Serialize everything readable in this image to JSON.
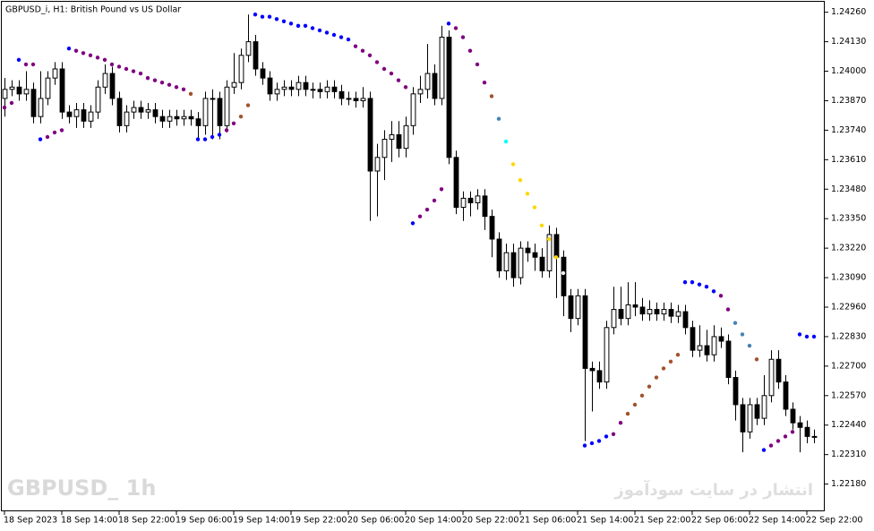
{
  "chart_data": {
    "type": "candlestick",
    "title": "GBPUSD_i, H1:  British Pound vs US Dollar",
    "watermark": "GBPUSD_ 1h",
    "caption": "انتشار در سایت سودآموز",
    "up_color": "#ffffff",
    "down_color": "#000000",
    "xlim": [
      -0.5,
      114.5
    ],
    "ylim": [
      1.2206,
      1.2431
    ],
    "xticks": [
      {
        "value": 0,
        "label": "18 Sep 2023"
      },
      {
        "value": 8,
        "label": "18 Sep 14:00"
      },
      {
        "value": 16,
        "label": "18 Sep 22:00"
      },
      {
        "value": 24,
        "label": "19 Sep 06:00"
      },
      {
        "value": 32,
        "label": "19 Sep 14:00"
      },
      {
        "value": 40,
        "label": "19 Sep 22:00"
      },
      {
        "value": 48,
        "label": "20 Sep 06:00"
      },
      {
        "value": 56,
        "label": "20 Sep 14:00"
      },
      {
        "value": 64,
        "label": "20 Sep 22:00"
      },
      {
        "value": 72,
        "label": "21 Sep 06:00"
      },
      {
        "value": 80,
        "label": "21 Sep 14:00"
      },
      {
        "value": 88,
        "label": "21 Sep 22:00"
      },
      {
        "value": 96,
        "label": "22 Sep 06:00"
      },
      {
        "value": 104,
        "label": "22 Sep 14:00"
      },
      {
        "value": 112,
        "label": "22 Sep 22:00"
      }
    ],
    "yticks": [
      {
        "value": 1.2426,
        "label": "1.24260"
      },
      {
        "value": 1.2413,
        "label": "1.24130"
      },
      {
        "value": 1.24,
        "label": "1.24000"
      },
      {
        "value": 1.2387,
        "label": "1.23870"
      },
      {
        "value": 1.2374,
        "label": "1.23740"
      },
      {
        "value": 1.2361,
        "label": "1.23610"
      },
      {
        "value": 1.2348,
        "label": "1.23480"
      },
      {
        "value": 1.2335,
        "label": "1.23350"
      },
      {
        "value": 1.2322,
        "label": "1.23220"
      },
      {
        "value": 1.2309,
        "label": "1.23090"
      },
      {
        "value": 1.2296,
        "label": "1.22960"
      },
      {
        "value": 1.2283,
        "label": "1.22830"
      },
      {
        "value": 1.227,
        "label": "1.22700"
      },
      {
        "value": 1.2257,
        "label": "1.22570"
      },
      {
        "value": 1.2244,
        "label": "1.22440"
      },
      {
        "value": 1.2231,
        "label": "1.22310"
      },
      {
        "value": 1.2218,
        "label": "1.22180"
      }
    ],
    "open": [
      1.2388,
      1.2392,
      1.2393,
      1.239,
      1.2392,
      1.238,
      1.2388,
      1.2397,
      1.2401,
      1.2382,
      1.238,
      1.2383,
      1.2378,
      1.2382,
      1.2393,
      1.2399,
      1.2388,
      1.2376,
      1.2382,
      1.2384,
      1.2382,
      1.2383,
      1.238,
      1.2378,
      1.238,
      1.2379,
      1.238,
      1.2379,
      1.2376,
      1.2388,
      1.2388,
      1.2376,
      1.2393,
      1.2395,
      1.2407,
      1.2413,
      1.2401,
      1.2397,
      1.239,
      1.2392,
      1.2393,
      1.2392,
      1.2395,
      1.2392,
      1.2392,
      1.2391,
      1.2393,
      1.2391,
      1.2388,
      1.2388,
      1.2387,
      1.2388,
      1.2356,
      1.2362,
      1.237,
      1.2372,
      1.2366,
      1.2376,
      1.239,
      1.2392,
      1.2399,
      1.2388,
      1.2415,
      1.2362,
      1.234,
      1.2344,
      1.2342,
      1.2345,
      1.2336,
      1.2326,
      1.2312,
      1.232,
      1.2309,
      1.2322,
      1.232,
      1.2318,
      1.2312,
      1.2328,
      1.2318,
      1.2301,
      1.2291,
      1.2301,
      1.2269,
      1.2268,
      1.2263,
      1.2287,
      1.2295,
      1.2291,
      1.2297,
      1.2296,
      1.2293,
      1.2295,
      1.2293,
      1.2295,
      1.2292,
      1.2294,
      1.2287,
      1.2277,
      1.2279,
      1.2275,
      1.2283,
      1.2281,
      1.2265,
      1.2253,
      1.2241,
      1.2253,
      1.2247,
      1.2257,
      1.2273,
      1.2263,
      1.2251,
      1.2245,
      1.2243,
      1.2239
    ],
    "high": [
      1.2397,
      1.2396,
      1.2396,
      1.24,
      1.2395,
      1.24,
      1.24,
      1.2404,
      1.2404,
      1.2385,
      1.2386,
      1.2386,
      1.2385,
      1.2396,
      1.2403,
      1.2402,
      1.2391,
      1.2385,
      1.2387,
      1.2387,
      1.2386,
      1.2386,
      1.2383,
      1.2383,
      1.2383,
      1.2383,
      1.2383,
      1.2382,
      1.2391,
      1.2392,
      1.2391,
      1.2396,
      1.2408,
      1.241,
      1.2425,
      1.2416,
      1.2404,
      1.24,
      1.2395,
      1.2396,
      1.2396,
      1.2398,
      1.2398,
      1.2395,
      1.2395,
      1.2396,
      1.2396,
      1.2394,
      1.2391,
      1.2391,
      1.2393,
      1.2391,
      1.2368,
      1.2374,
      1.2378,
      1.2378,
      1.238,
      1.2393,
      1.2398,
      1.2412,
      1.2403,
      1.242,
      1.2418,
      1.2365,
      1.2347,
      1.2347,
      1.2348,
      1.2348,
      1.2339,
      1.2329,
      1.2324,
      1.2324,
      1.2325,
      1.2325,
      1.2324,
      1.2322,
      1.2332,
      1.2331,
      1.2321,
      1.2304,
      1.2304,
      1.2304,
      1.2272,
      1.2272,
      1.229,
      1.2305,
      1.2305,
      1.2307,
      1.2307,
      1.23,
      1.2299,
      1.2298,
      1.2298,
      1.2298,
      1.2297,
      1.2297,
      1.229,
      1.2288,
      1.2286,
      1.2288,
      1.2287,
      1.2284,
      1.2268,
      1.2256,
      1.2256,
      1.2256,
      1.2266,
      1.2277,
      1.2277,
      1.2266,
      1.2254,
      1.2248,
      1.2246,
      1.2242
    ],
    "low": [
      1.238,
      1.2389,
      1.2387,
      1.2387,
      1.2377,
      1.2377,
      1.2385,
      1.2394,
      1.2379,
      1.2377,
      1.2375,
      1.2375,
      1.2375,
      1.2379,
      1.239,
      1.2385,
      1.2373,
      1.2373,
      1.2379,
      1.2379,
      1.2379,
      1.2377,
      1.2375,
      1.2375,
      1.2376,
      1.2376,
      1.2376,
      1.237,
      1.2372,
      1.237,
      1.237,
      1.2373,
      1.239,
      1.2392,
      1.2404,
      1.2398,
      1.2394,
      1.2387,
      1.2387,
      1.2389,
      1.2389,
      1.2389,
      1.2389,
      1.2388,
      1.2388,
      1.2388,
      1.2388,
      1.2385,
      1.2385,
      1.2384,
      1.2384,
      1.2334,
      1.2336,
      1.2352,
      1.236,
      1.2362,
      1.2362,
      1.2372,
      1.2386,
      1.2388,
      1.2385,
      1.2385,
      1.2359,
      1.2337,
      1.2334,
      1.2336,
      1.2339,
      1.233,
      1.2318,
      1.2309,
      1.2308,
      1.2305,
      1.2306,
      1.2316,
      1.2312,
      1.2309,
      1.2309,
      1.23,
      1.2292,
      1.2285,
      1.2288,
      1.2237,
      1.225,
      1.226,
      1.226,
      1.2284,
      1.2288,
      1.2288,
      1.2292,
      1.229,
      1.229,
      1.229,
      1.229,
      1.2289,
      1.2289,
      1.2284,
      1.2274,
      1.2274,
      1.2272,
      1.2272,
      1.2278,
      1.2262,
      1.2246,
      1.2232,
      1.2238,
      1.2244,
      1.2244,
      1.2254,
      1.226,
      1.2248,
      1.2242,
      1.2232,
      1.2236,
      1.2236
    ],
    "close": [
      1.2392,
      1.2393,
      1.239,
      1.2392,
      1.238,
      1.2388,
      1.2397,
      1.2401,
      1.2382,
      1.238,
      1.2383,
      1.2378,
      1.2382,
      1.2393,
      1.2399,
      1.2388,
      1.2376,
      1.2382,
      1.2384,
      1.2382,
      1.2383,
      1.238,
      1.2378,
      1.238,
      1.2379,
      1.238,
      1.2379,
      1.2376,
      1.2388,
      1.2388,
      1.2376,
      1.2393,
      1.2395,
      1.2407,
      1.2413,
      1.2401,
      1.2397,
      1.239,
      1.2392,
      1.2393,
      1.2392,
      1.2395,
      1.2392,
      1.2392,
      1.2391,
      1.2393,
      1.2391,
      1.2388,
      1.2388,
      1.2387,
      1.2388,
      1.2356,
      1.2362,
      1.237,
      1.2372,
      1.2366,
      1.2376,
      1.239,
      1.2392,
      1.2399,
      1.2388,
      1.2415,
      1.2362,
      1.234,
      1.2344,
      1.2342,
      1.2345,
      1.2336,
      1.2326,
      1.2312,
      1.232,
      1.2309,
      1.2322,
      1.232,
      1.2318,
      1.2312,
      1.2328,
      1.2318,
      1.2301,
      1.2291,
      1.2301,
      1.2269,
      1.2268,
      1.2263,
      1.2287,
      1.2295,
      1.2291,
      1.2297,
      1.2296,
      1.2293,
      1.2295,
      1.2293,
      1.2295,
      1.2292,
      1.2294,
      1.2287,
      1.2277,
      1.2279,
      1.2275,
      1.2283,
      1.2281,
      1.2265,
      1.2253,
      1.2241,
      1.2253,
      1.2247,
      1.2257,
      1.2273,
      1.2263,
      1.2251,
      1.2245,
      1.2243,
      1.2239,
      1.2239
    ],
    "sar": {
      "values": [
        1.2384,
        1.2386,
        1.2405,
        1.2403,
        1.2403,
        1.237,
        1.2371,
        1.2373,
        1.2374,
        1.241,
        1.2409,
        1.2408,
        1.2407,
        1.2406,
        1.2405,
        1.2403,
        1.2402,
        1.2401,
        1.24,
        1.2399,
        1.2397,
        1.2396,
        1.2395,
        1.2394,
        1.2393,
        1.2392,
        1.239,
        1.237,
        1.237,
        1.2371,
        1.2372,
        1.2374,
        1.2377,
        1.238,
        1.2385,
        1.2425,
        1.2424,
        1.2424,
        1.2423,
        1.2422,
        1.2421,
        1.242,
        1.242,
        1.2419,
        1.2418,
        1.2417,
        1.2416,
        1.2415,
        1.2414,
        1.2411,
        1.2409,
        1.2407,
        1.2404,
        1.2401,
        1.2399,
        1.2396,
        1.2393,
        1.2333,
        1.2336,
        1.2339,
        1.2343,
        1.2348,
        1.2421,
        1.2419,
        1.2415,
        1.2409,
        1.2403,
        1.2395,
        1.2389,
        1.2379,
        1.2369,
        1.2359,
        1.2352,
        1.2346,
        1.234,
        1.2332,
        1.2326,
        1.2318,
        1.2311,
        null,
        null,
        1.2235,
        1.2236,
        1.2237,
        1.2239,
        1.224,
        1.2245,
        1.2249,
        1.2253,
        1.2257,
        1.2261,
        1.2265,
        1.2269,
        1.2272,
        1.2275,
        1.2307,
        1.2307,
        1.2306,
        1.2305,
        1.2303,
        1.2301,
        1.2295,
        1.2289,
        1.2284,
        1.2279,
        1.2273,
        1.2233,
        1.2235,
        1.2237,
        1.2239,
        1.2241,
        1.2284,
        1.2283,
        1.2283
      ],
      "colors": [
        "#800080",
        "#800080",
        "#0000ff",
        "#800080",
        "#800080",
        "#0000ff",
        "#800080",
        "#800080",
        "#800080",
        "#0000ff",
        "#800080",
        "#800080",
        "#800080",
        "#800080",
        "#800080",
        "#800080",
        "#800080",
        "#800080",
        "#800080",
        "#800080",
        "#800080",
        "#800080",
        "#800080",
        "#800080",
        "#800080",
        "#800080",
        "#a0522d",
        "#0000ff",
        "#0000ff",
        "#0000ff",
        "#0000ff",
        "#800080",
        "#800080",
        "#a0522d",
        "#a0522d",
        "#0000ff",
        "#0000ff",
        "#0000ff",
        "#0000ff",
        "#0000ff",
        "#0000ff",
        "#0000ff",
        "#0000ff",
        "#0000ff",
        "#0000ff",
        "#0000ff",
        "#0000ff",
        "#0000ff",
        "#0000ff",
        "#800080",
        "#800080",
        "#800080",
        "#800080",
        "#800080",
        "#800080",
        "#800080",
        "#800080",
        "#0000ff",
        "#800080",
        "#800080",
        "#800080",
        "#800080",
        "#0000ff",
        "#800080",
        "#800080",
        "#800080",
        "#800080",
        "#800080",
        "#a0522d",
        "#4682b4",
        "#00ffff",
        "#ffd700",
        "#ffd700",
        "#ffd700",
        "#ffd700",
        "#ffd700",
        "#ffd700",
        "#ffd700",
        "#f0f0f0",
        null,
        null,
        "#0000ff",
        "#0000ff",
        "#0000ff",
        "#0000ff",
        "#800080",
        "#800080",
        "#a0522d",
        "#a0522d",
        "#a0522d",
        "#a0522d",
        "#a0522d",
        "#a0522d",
        "#a0522d",
        "#a0522d",
        "#0000ff",
        "#0000ff",
        "#0000ff",
        "#0000ff",
        "#0000ff",
        "#800080",
        "#800080",
        "#4682b4",
        "#4682b4",
        "#4682b4",
        "#a0522d",
        "#0000ff",
        "#800080",
        "#800080",
        "#800080",
        "#800080",
        "#0000ff",
        "#0000ff",
        "#0000ff"
      ]
    }
  }
}
